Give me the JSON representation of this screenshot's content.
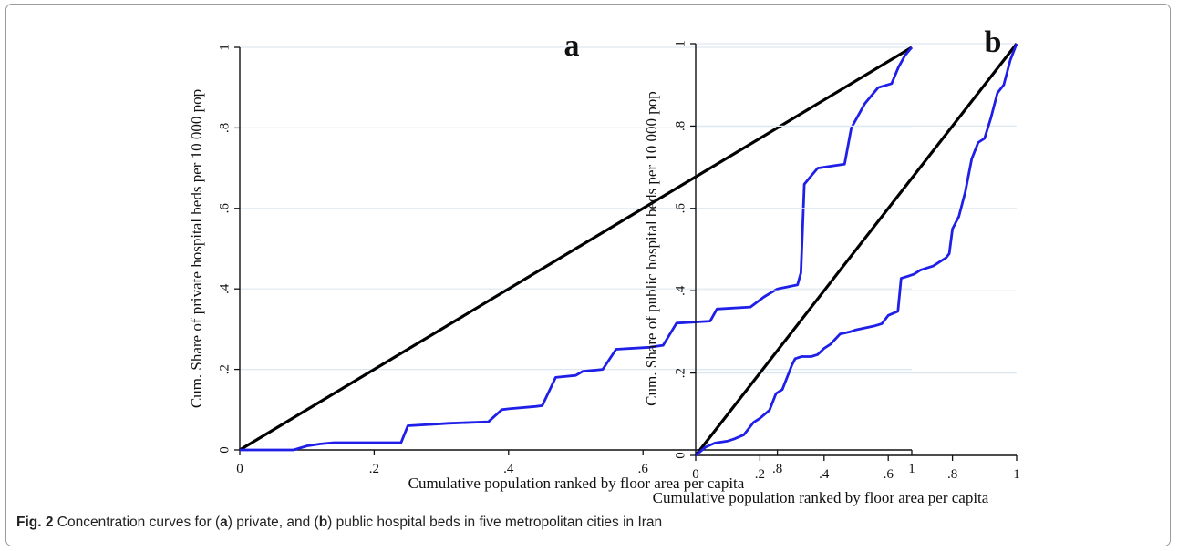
{
  "caption": {
    "prefix": "Fig. 2",
    "parts": [
      " Concentration curves for (",
      "a",
      ") private, and (",
      "b",
      ") public hospital beds in five metropolitan cities in Iran"
    ]
  },
  "chart_data": [
    {
      "type": "line",
      "panel_label": "a",
      "xlabel": "Cumulative population ranked by floor area per capita",
      "ylabel": "Cum. Share of private hospital beds per 10 000 pop",
      "xlim": [
        0,
        1
      ],
      "ylim": [
        0,
        1
      ],
      "xticks": [
        "0",
        ".2",
        ".4",
        ".6",
        ".8",
        "1"
      ],
      "yticks": [
        "0",
        ".2",
        ".4",
        ".6",
        ".8",
        "1"
      ],
      "grid": true,
      "series": [
        {
          "role": "equality line",
          "color": "#000000",
          "x": [
            0,
            1
          ],
          "y": [
            0,
            1
          ]
        },
        {
          "role": "concentration curve",
          "color": "#1f1fe8",
          "x": [
            0,
            0.08,
            0.1,
            0.12,
            0.14,
            0.24,
            0.25,
            0.27,
            0.3,
            0.31,
            0.37,
            0.39,
            0.4,
            0.44,
            0.45,
            0.47,
            0.5,
            0.51,
            0.54,
            0.56,
            0.61,
            0.63,
            0.65,
            0.7,
            0.71,
            0.76,
            0.78,
            0.8,
            0.83,
            0.835,
            0.84,
            0.85,
            0.86,
            0.88,
            0.9,
            0.91,
            0.93,
            0.95,
            0.97,
            0.98,
            0.99,
            1.0
          ],
          "y": [
            0,
            0,
            0.01,
            0.015,
            0.018,
            0.018,
            0.06,
            0.062,
            0.065,
            0.066,
            0.07,
            0.1,
            0.102,
            0.108,
            0.11,
            0.18,
            0.185,
            0.195,
            0.2,
            0.25,
            0.255,
            0.26,
            0.315,
            0.32,
            0.35,
            0.355,
            0.38,
            0.4,
            0.41,
            0.44,
            0.66,
            0.68,
            0.7,
            0.705,
            0.71,
            0.8,
            0.86,
            0.9,
            0.91,
            0.95,
            0.98,
            1.0
          ]
        }
      ]
    },
    {
      "type": "line",
      "panel_label": "b",
      "xlabel": "Cumulative population ranked by floor area per capita",
      "ylabel": "Cum. Share of public hospital beds per 10 000 pop",
      "xlim": [
        0,
        1
      ],
      "ylim": [
        0,
        1
      ],
      "xticks": [
        "0",
        ".2",
        ".4",
        ".6",
        ".8",
        "1"
      ],
      "yticks": [
        "0",
        ".2",
        ".4",
        ".6",
        ".8",
        "1"
      ],
      "grid": true,
      "series": [
        {
          "role": "equality line",
          "color": "#000000",
          "x": [
            0,
            1
          ],
          "y": [
            0,
            1
          ]
        },
        {
          "role": "concentration curve",
          "color": "#1f1fe8",
          "x": [
            0,
            0.03,
            0.06,
            0.1,
            0.12,
            0.15,
            0.18,
            0.2,
            0.23,
            0.25,
            0.27,
            0.29,
            0.3,
            0.31,
            0.33,
            0.36,
            0.38,
            0.4,
            0.42,
            0.45,
            0.48,
            0.5,
            0.53,
            0.56,
            0.58,
            0.6,
            0.63,
            0.64,
            0.66,
            0.68,
            0.7,
            0.72,
            0.74,
            0.76,
            0.78,
            0.79,
            0.8,
            0.82,
            0.84,
            0.86,
            0.88,
            0.9,
            0.92,
            0.94,
            0.96,
            0.98,
            1.0
          ],
          "y": [
            0,
            0.02,
            0.03,
            0.035,
            0.04,
            0.05,
            0.08,
            0.09,
            0.11,
            0.15,
            0.16,
            0.2,
            0.22,
            0.235,
            0.24,
            0.24,
            0.245,
            0.26,
            0.27,
            0.295,
            0.3,
            0.305,
            0.31,
            0.315,
            0.32,
            0.34,
            0.35,
            0.43,
            0.435,
            0.44,
            0.45,
            0.455,
            0.46,
            0.47,
            0.48,
            0.49,
            0.55,
            0.58,
            0.64,
            0.72,
            0.76,
            0.77,
            0.82,
            0.88,
            0.9,
            0.96,
            1.0
          ]
        }
      ]
    }
  ]
}
